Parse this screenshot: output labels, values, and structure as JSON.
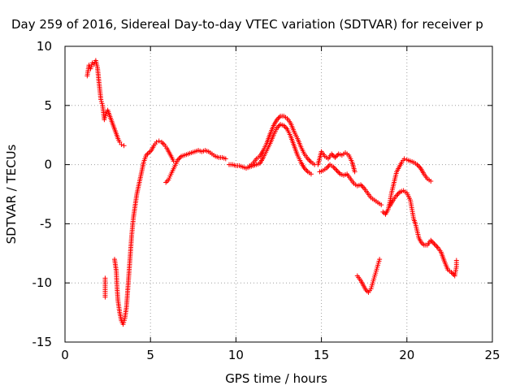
{
  "chart_data": {
    "type": "scatter",
    "title": "Day 259 of 2016, Sidereal Day-to-day VTEC variation (SDTVAR) for receiver p",
    "xlabel": "GPS time / hours",
    "ylabel": "SDTVAR / TECUs",
    "xlim": [
      0,
      25
    ],
    "ylim": [
      -15,
      10
    ],
    "x_ticks": [
      0,
      5,
      10,
      15,
      20,
      25
    ],
    "y_ticks": [
      -15,
      -10,
      -5,
      0,
      5,
      10
    ],
    "x_tick_labels": [
      "0",
      "5",
      "10",
      "15",
      "20",
      "25"
    ],
    "y_tick_labels": [
      "-15",
      "-10",
      "-5",
      "0",
      "5",
      "10"
    ],
    "grid": true,
    "marker": "+",
    "series": [
      {
        "name": "SDTVAR",
        "color": "#ff0000",
        "segments": [
          [
            [
              1.3,
              7.5
            ],
            [
              1.4,
              8.4
            ],
            [
              1.5,
              8.1
            ],
            [
              1.6,
              8.6
            ],
            [
              1.7,
              8.5
            ],
            [
              1.8,
              8.8
            ],
            [
              1.9,
              8.2
            ],
            [
              2.0,
              6.8
            ],
            [
              2.1,
              5.5
            ],
            [
              2.2,
              5.0
            ],
            [
              2.3,
              3.8
            ],
            [
              2.4,
              4.3
            ],
            [
              2.5,
              4.6
            ],
            [
              2.6,
              4.2
            ],
            [
              2.7,
              3.8
            ],
            [
              2.8,
              3.4
            ],
            [
              2.9,
              3.0
            ],
            [
              3.0,
              2.6
            ],
            [
              3.1,
              2.2
            ],
            [
              3.2,
              1.9
            ],
            [
              3.3,
              1.7
            ],
            [
              3.45,
              1.6
            ]
          ],
          [
            [
              2.35,
              -9.6
            ],
            [
              2.35,
              -10.4
            ],
            [
              2.35,
              -11.2
            ]
          ],
          [
            [
              2.9,
              -8.0
            ],
            [
              3.0,
              -9.0
            ],
            [
              3.05,
              -10.5
            ],
            [
              3.1,
              -11.5
            ],
            [
              3.2,
              -12.5
            ],
            [
              3.3,
              -13.2
            ],
            [
              3.4,
              -13.5
            ],
            [
              3.5,
              -13.0
            ],
            [
              3.6,
              -12.0
            ],
            [
              3.7,
              -10.0
            ],
            [
              3.8,
              -8.0
            ],
            [
              3.9,
              -6.0
            ],
            [
              4.0,
              -4.5
            ],
            [
              4.1,
              -3.5
            ],
            [
              4.2,
              -2.5
            ],
            [
              4.35,
              -1.5
            ],
            [
              4.5,
              -0.5
            ],
            [
              4.6,
              0.2
            ],
            [
              4.75,
              0.8
            ],
            [
              4.9,
              1.0
            ],
            [
              5.05,
              1.2
            ],
            [
              5.2,
              1.6
            ],
            [
              5.35,
              1.9
            ],
            [
              5.5,
              2.0
            ],
            [
              5.65,
              1.9
            ],
            [
              5.8,
              1.7
            ],
            [
              5.95,
              1.4
            ],
            [
              6.1,
              1.0
            ],
            [
              6.25,
              0.6
            ],
            [
              6.35,
              0.3
            ]
          ],
          [
            [
              5.9,
              -1.5
            ],
            [
              6.05,
              -1.3
            ],
            [
              6.2,
              -0.8
            ],
            [
              6.4,
              -0.2
            ],
            [
              6.6,
              0.4
            ],
            [
              6.8,
              0.7
            ],
            [
              7.0,
              0.8
            ],
            [
              7.2,
              0.9
            ],
            [
              7.4,
              1.0
            ],
            [
              7.6,
              1.1
            ],
            [
              7.8,
              1.2
            ],
            [
              8.0,
              1.1
            ],
            [
              8.2,
              1.2
            ],
            [
              8.4,
              1.1
            ],
            [
              8.6,
              0.9
            ],
            [
              8.8,
              0.7
            ],
            [
              9.0,
              0.6
            ],
            [
              9.2,
              0.6
            ],
            [
              9.4,
              0.5
            ]
          ],
          [
            [
              9.6,
              0.0
            ],
            [
              9.8,
              0.0
            ],
            [
              10.0,
              -0.1
            ],
            [
              10.2,
              -0.1
            ],
            [
              10.4,
              -0.2
            ],
            [
              10.6,
              -0.3
            ],
            [
              10.8,
              -0.2
            ],
            [
              11.0,
              -0.1
            ],
            [
              11.2,
              0.0
            ],
            [
              11.4,
              0.1
            ],
            [
              11.6,
              0.6
            ],
            [
              11.8,
              1.2
            ],
            [
              12.0,
              1.8
            ],
            [
              12.2,
              2.5
            ],
            [
              12.4,
              3.1
            ],
            [
              12.6,
              3.4
            ],
            [
              12.8,
              3.3
            ],
            [
              13.0,
              3.0
            ],
            [
              13.2,
              2.4
            ],
            [
              13.4,
              1.6
            ],
            [
              13.6,
              0.8
            ],
            [
              13.8,
              0.2
            ],
            [
              14.0,
              -0.3
            ],
            [
              14.2,
              -0.6
            ],
            [
              14.4,
              -0.8
            ]
          ],
          [
            [
              10.8,
              -0.1
            ],
            [
              11.0,
              0.1
            ],
            [
              11.2,
              0.5
            ],
            [
              11.4,
              0.7
            ],
            [
              11.6,
              1.2
            ],
            [
              11.8,
              1.8
            ],
            [
              12.0,
              2.6
            ],
            [
              12.2,
              3.3
            ],
            [
              12.4,
              3.8
            ],
            [
              12.6,
              4.1
            ],
            [
              12.8,
              4.1
            ],
            [
              13.0,
              3.9
            ],
            [
              13.2,
              3.5
            ],
            [
              13.4,
              2.8
            ],
            [
              13.6,
              2.2
            ],
            [
              13.8,
              1.5
            ],
            [
              14.0,
              0.9
            ],
            [
              14.2,
              0.5
            ],
            [
              14.4,
              0.2
            ],
            [
              14.6,
              0.0
            ]
          ],
          [
            [
              14.8,
              0.0
            ],
            [
              15.0,
              1.1
            ],
            [
              15.2,
              0.7
            ],
            [
              15.4,
              0.5
            ],
            [
              15.6,
              0.9
            ],
            [
              15.8,
              0.6
            ],
            [
              16.0,
              0.9
            ],
            [
              16.2,
              0.8
            ],
            [
              16.4,
              1.0
            ],
            [
              16.6,
              0.8
            ],
            [
              16.8,
              0.2
            ],
            [
              16.95,
              -0.6
            ]
          ],
          [
            [
              14.9,
              -0.6
            ],
            [
              15.1,
              -0.5
            ],
            [
              15.3,
              -0.3
            ],
            [
              15.5,
              0.0
            ],
            [
              15.7,
              -0.2
            ],
            [
              15.9,
              -0.5
            ],
            [
              16.1,
              -0.8
            ],
            [
              16.3,
              -0.9
            ],
            [
              16.5,
              -0.8
            ],
            [
              16.7,
              -1.2
            ],
            [
              16.9,
              -1.6
            ],
            [
              17.1,
              -1.8
            ],
            [
              17.3,
              -1.7
            ],
            [
              17.5,
              -2.0
            ],
            [
              17.7,
              -2.4
            ],
            [
              17.9,
              -2.8
            ],
            [
              18.1,
              -3.0
            ],
            [
              18.3,
              -3.2
            ],
            [
              18.5,
              -3.4
            ]
          ],
          [
            [
              17.1,
              -9.4
            ],
            [
              17.3,
              -9.8
            ],
            [
              17.45,
              -10.2
            ],
            [
              17.6,
              -10.6
            ],
            [
              17.75,
              -10.8
            ],
            [
              17.9,
              -10.5
            ],
            [
              18.0,
              -10.0
            ],
            [
              18.1,
              -9.5
            ],
            [
              18.2,
              -9.0
            ],
            [
              18.3,
              -8.5
            ],
            [
              18.4,
              -8.0
            ]
          ],
          [
            [
              18.6,
              -4.0
            ],
            [
              18.75,
              -4.2
            ],
            [
              18.9,
              -3.8
            ],
            [
              19.0,
              -3.2
            ],
            [
              19.1,
              -2.4
            ],
            [
              19.2,
              -1.8
            ],
            [
              19.3,
              -1.2
            ],
            [
              19.4,
              -0.6
            ],
            [
              19.55,
              -0.2
            ],
            [
              19.7,
              0.2
            ],
            [
              19.85,
              0.5
            ],
            [
              20.0,
              0.4
            ],
            [
              20.2,
              0.3
            ],
            [
              20.4,
              0.2
            ],
            [
              20.6,
              0.0
            ],
            [
              20.8,
              -0.3
            ],
            [
              21.0,
              -0.8
            ],
            [
              21.2,
              -1.2
            ],
            [
              21.4,
              -1.4
            ]
          ],
          [
            [
              19.0,
              -3.5
            ],
            [
              19.2,
              -3.0
            ],
            [
              19.4,
              -2.6
            ],
            [
              19.6,
              -2.3
            ],
            [
              19.8,
              -2.2
            ],
            [
              20.0,
              -2.4
            ],
            [
              20.2,
              -3.0
            ],
            [
              20.3,
              -3.8
            ],
            [
              20.4,
              -4.6
            ],
            [
              20.5,
              -5.0
            ],
            [
              20.6,
              -5.6
            ],
            [
              20.7,
              -6.2
            ],
            [
              20.85,
              -6.6
            ],
            [
              21.0,
              -6.8
            ],
            [
              21.2,
              -6.8
            ],
            [
              21.4,
              -6.4
            ],
            [
              21.6,
              -6.7
            ],
            [
              21.8,
              -7.0
            ],
            [
              22.0,
              -7.4
            ],
            [
              22.2,
              -8.2
            ],
            [
              22.4,
              -8.9
            ],
            [
              22.6,
              -9.1
            ],
            [
              22.8,
              -9.4
            ],
            [
              22.9,
              -8.6
            ],
            [
              22.9,
              -8.1
            ]
          ]
        ]
      }
    ]
  }
}
